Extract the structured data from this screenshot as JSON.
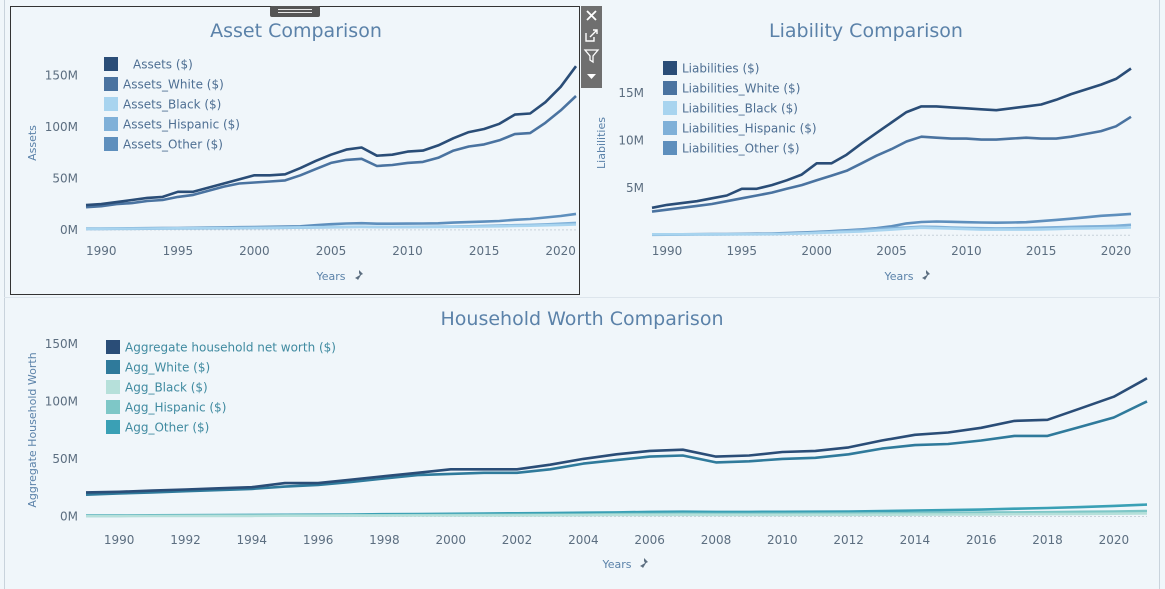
{
  "chart_data": [
    {
      "type": "line",
      "title": "Asset Comparison",
      "xlabel": "Years",
      "ylabel": "Assets",
      "x_ticks": [
        "1990",
        "1995",
        "2000",
        "2005",
        "2010",
        "2015",
        "2020"
      ],
      "y_ticks": [
        "0M",
        "50M",
        "100M",
        "150M"
      ],
      "xlim": [
        1989,
        2021
      ],
      "ylim": [
        -5,
        165
      ],
      "x": [
        1989,
        1990,
        1991,
        1992,
        1993,
        1994,
        1995,
        1996,
        1997,
        1998,
        1999,
        2000,
        2001,
        2002,
        2003,
        2004,
        2005,
        2006,
        2007,
        2008,
        2009,
        2010,
        2011,
        2012,
        2013,
        2014,
        2015,
        2016,
        2017,
        2018,
        2019,
        2020,
        2021
      ],
      "series": [
        {
          "name": "Assets ($)",
          "color": "#2a4d77",
          "values": [
            24,
            25,
            27,
            29,
            31,
            32,
            37,
            37,
            41,
            45,
            49,
            53,
            53,
            54,
            60,
            67,
            73,
            78,
            80,
            72,
            73,
            76,
            77,
            82,
            89,
            95,
            98,
            103,
            112,
            113,
            124,
            139,
            159
          ]
        },
        {
          "name": "Assets_White ($)",
          "color": "#4a73a0",
          "values": [
            22,
            23,
            25,
            26,
            28,
            29,
            32,
            34,
            38,
            42,
            45,
            46,
            47,
            48,
            53,
            59,
            65,
            68,
            69,
            62,
            63,
            65,
            66,
            70,
            77,
            81,
            83,
            87,
            93,
            94,
            104,
            116,
            130
          ]
        },
        {
          "name": "Assets_Black ($)",
          "color": "#a8d4ef",
          "values": [
            1,
            1.1,
            1.2,
            1.2,
            1.3,
            1.4,
            1.5,
            1.6,
            1.7,
            1.8,
            1.9,
            2,
            2.1,
            2.2,
            2.4,
            2.6,
            2.8,
            3,
            3.1,
            2.9,
            2.8,
            2.8,
            2.8,
            2.9,
            3,
            3.1,
            3.3,
            3.5,
            3.8,
            4,
            4.4,
            4.8,
            5.2
          ]
        },
        {
          "name": "Assets_Hispanic ($)",
          "color": "#7fb0d8",
          "values": [
            0.8,
            0.9,
            1,
            1,
            1.1,
            1.2,
            1.3,
            1.4,
            1.5,
            1.6,
            1.7,
            1.8,
            1.9,
            2,
            2.2,
            2.4,
            2.6,
            2.9,
            3,
            2.8,
            2.8,
            2.9,
            3,
            3.1,
            3.3,
            3.5,
            3.8,
            4.1,
            4.5,
            4.8,
            5.3,
            6,
            6.8
          ]
        },
        {
          "name": "Assets_Other ($)",
          "color": "#5e8fbd",
          "values": [
            1.2,
            1.3,
            1.4,
            1.5,
            1.6,
            1.7,
            1.8,
            2,
            2.2,
            2.4,
            2.6,
            2.8,
            3,
            3.2,
            3.5,
            4.5,
            5.5,
            6.2,
            6.5,
            6,
            6,
            6.1,
            6.2,
            6.4,
            7,
            7.5,
            8,
            8.6,
            9.8,
            10.5,
            12,
            13.5,
            15.5
          ]
        }
      ]
    },
    {
      "type": "line",
      "title": "Liability Comparison",
      "xlabel": "Years",
      "ylabel": "Liabilities",
      "x_ticks": [
        "1990",
        "1995",
        "2000",
        "2005",
        "2010",
        "2015",
        "2020"
      ],
      "y_ticks": [
        "5M",
        "10M",
        "15M"
      ],
      "xlim": [
        1989,
        2021
      ],
      "ylim": [
        -0.5,
        18.5
      ],
      "x": [
        1989,
        1990,
        1991,
        1992,
        1993,
        1994,
        1995,
        1996,
        1997,
        1998,
        1999,
        2000,
        2001,
        2002,
        2003,
        2004,
        2005,
        2006,
        2007,
        2008,
        2009,
        2010,
        2011,
        2012,
        2013,
        2014,
        2015,
        2016,
        2017,
        2018,
        2019,
        2020,
        2021
      ],
      "series": [
        {
          "name": "Liabilities ($)",
          "color": "#2a4d77",
          "values": [
            2.9,
            3.2,
            3.4,
            3.6,
            3.9,
            4.2,
            4.9,
            4.9,
            5.3,
            5.8,
            6.4,
            7.6,
            7.6,
            8.5,
            9.7,
            10.8,
            11.9,
            13,
            13.6,
            13.6,
            13.5,
            13.4,
            13.3,
            13.2,
            13.4,
            13.6,
            13.8,
            14.3,
            14.9,
            15.4,
            15.9,
            16.5,
            17.6
          ]
        },
        {
          "name": "Liabilities_White ($)",
          "color": "#4a73a0",
          "values": [
            2.5,
            2.7,
            2.9,
            3.1,
            3.3,
            3.6,
            3.9,
            4.2,
            4.5,
            4.9,
            5.3,
            5.8,
            6.3,
            6.8,
            7.6,
            8.4,
            9.1,
            9.9,
            10.4,
            10.3,
            10.2,
            10.2,
            10.1,
            10.1,
            10.2,
            10.3,
            10.2,
            10.2,
            10.4,
            10.7,
            11,
            11.5,
            12.5
          ]
        },
        {
          "name": "Liabilities_Black ($)",
          "color": "#a8d4ef",
          "values": [
            0.1,
            0.1,
            0.1,
            0.1,
            0.1,
            0.1,
            0.1,
            0.1,
            0.12,
            0.15,
            0.2,
            0.25,
            0.3,
            0.35,
            0.4,
            0.5,
            0.6,
            0.7,
            0.8,
            0.75,
            0.7,
            0.65,
            0.6,
            0.6,
            0.6,
            0.6,
            0.62,
            0.65,
            0.7,
            0.72,
            0.75,
            0.78,
            0.82
          ]
        },
        {
          "name": "Liabilities_Hispanic ($)",
          "color": "#7fb0d8",
          "values": [
            0.05,
            0.06,
            0.07,
            0.08,
            0.09,
            0.1,
            0.11,
            0.12,
            0.14,
            0.17,
            0.22,
            0.3,
            0.38,
            0.46,
            0.55,
            0.65,
            0.75,
            0.82,
            0.9,
            0.88,
            0.82,
            0.78,
            0.75,
            0.72,
            0.74,
            0.76,
            0.8,
            0.84,
            0.88,
            0.92,
            0.95,
            1,
            1.1
          ]
        },
        {
          "name": "Liabilities_Other ($)",
          "color": "#5e8fbd",
          "values": [
            0.08,
            0.09,
            0.1,
            0.11,
            0.12,
            0.13,
            0.14,
            0.16,
            0.19,
            0.23,
            0.28,
            0.35,
            0.43,
            0.52,
            0.62,
            0.75,
            0.95,
            1.25,
            1.4,
            1.45,
            1.42,
            1.38,
            1.35,
            1.33,
            1.35,
            1.38,
            1.5,
            1.62,
            1.75,
            1.9,
            2.05,
            2.15,
            2.25
          ]
        }
      ]
    },
    {
      "type": "line",
      "title": "Household Worth Comparison",
      "xlabel": "Years",
      "ylabel": "Aggregate Household Worth",
      "x_ticks": [
        "1990",
        "1992",
        "1994",
        "1996",
        "1998",
        "2000",
        "2002",
        "2004",
        "2006",
        "2008",
        "2010",
        "2012",
        "2014",
        "2016",
        "2018",
        "2020"
      ],
      "y_ticks": [
        "0M",
        "50M",
        "100M",
        "150M"
      ],
      "xlim": [
        1989,
        2021
      ],
      "ylim": [
        -3,
        155
      ],
      "x": [
        1989,
        1990,
        1991,
        1992,
        1993,
        1994,
        1995,
        1996,
        1997,
        1998,
        1999,
        2000,
        2001,
        2002,
        2003,
        2004,
        2005,
        2006,
        2007,
        2008,
        2009,
        2010,
        2011,
        2012,
        2013,
        2014,
        2015,
        2016,
        2017,
        2018,
        2019,
        2020,
        2021
      ],
      "series": [
        {
          "name": "Aggregate household net worth ($)",
          "color": "#2a4d77",
          "values": [
            21,
            21.5,
            22.5,
            23.5,
            24.5,
            25.5,
            29,
            29,
            32,
            35,
            38,
            41,
            41,
            41,
            45,
            50,
            54,
            57,
            58,
            52,
            53,
            56,
            57,
            60,
            66,
            71,
            73,
            77,
            83,
            84,
            94,
            104,
            120
          ]
        },
        {
          "name": "Agg_White ($)",
          "color": "#2f7a9b",
          "values": [
            19,
            20,
            21,
            22,
            23,
            24,
            26,
            27.5,
            30,
            33,
            36,
            37,
            38,
            38,
            41,
            46,
            49,
            52,
            53,
            47,
            48,
            50,
            51,
            54,
            59,
            62,
            63,
            66,
            70,
            70,
            78,
            86,
            100
          ]
        },
        {
          "name": "Agg_Black ($)",
          "color": "#b6e0da",
          "values": [
            0.5,
            0.5,
            0.5,
            0.6,
            0.6,
            0.6,
            0.7,
            0.7,
            0.8,
            0.8,
            0.9,
            0.9,
            1,
            1,
            1.1,
            1.2,
            1.3,
            1.4,
            1.5,
            1.4,
            1.4,
            1.4,
            1.5,
            1.5,
            1.6,
            1.7,
            1.8,
            1.9,
            2,
            2.1,
            2.3,
            2.5,
            2.7
          ]
        },
        {
          "name": "Agg_Hispanic ($)",
          "color": "#7ec7c7",
          "values": [
            0.6,
            0.6,
            0.7,
            0.7,
            0.8,
            0.8,
            0.9,
            0.9,
            1,
            1.1,
            1.2,
            1.3,
            1.4,
            1.5,
            1.6,
            1.8,
            2,
            2.2,
            2.4,
            2.3,
            2.3,
            2.4,
            2.5,
            2.6,
            2.8,
            3,
            3.2,
            3.4,
            3.6,
            3.8,
            4.1,
            4.4,
            4.8
          ]
        },
        {
          "name": "Agg_Other ($)",
          "color": "#3aa0b5",
          "values": [
            1,
            1,
            1.1,
            1.2,
            1.3,
            1.4,
            1.5,
            1.6,
            1.8,
            2,
            2.2,
            2.4,
            2.6,
            2.8,
            3,
            3.3,
            3.6,
            4,
            4.2,
            4,
            4,
            4.1,
            4.2,
            4.4,
            4.8,
            5.2,
            5.6,
            6,
            6.8,
            7.4,
            8.2,
            9.2,
            10.4
          ]
        }
      ]
    }
  ],
  "toolbar": {
    "close_icon": "close-icon",
    "popout_icon": "popout-icon",
    "filter_icon": "filter-icon",
    "menu_icon": "dropdown-icon"
  },
  "colors": {
    "background": "#f0f6fa",
    "title": "#5b82a9",
    "axis": "#5c6e80"
  }
}
